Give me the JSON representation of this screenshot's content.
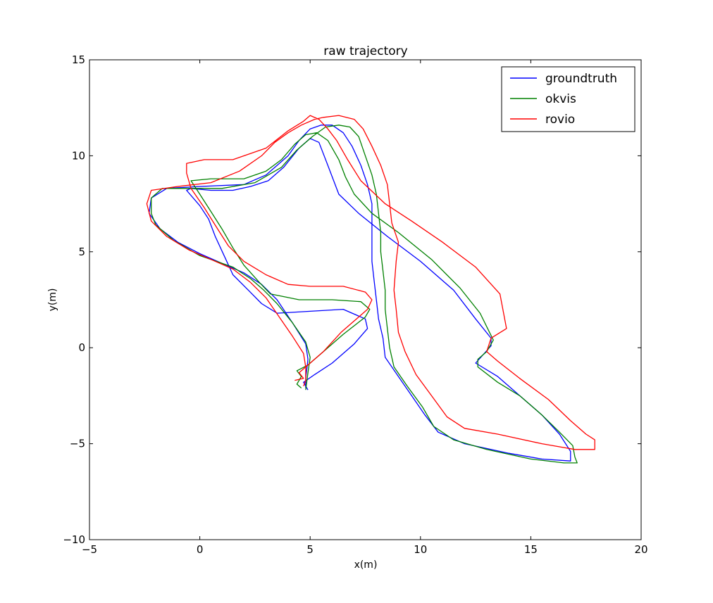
{
  "chart_data": {
    "type": "line",
    "title": "raw trajectory",
    "xlabel": "x(m)",
    "ylabel": "y(m)",
    "xlim": [
      -5,
      20
    ],
    "ylim": [
      -10,
      15
    ],
    "xticks": [
      -5,
      0,
      5,
      10,
      15,
      20
    ],
    "yticks": [
      -10,
      -5,
      0,
      5,
      10,
      15
    ],
    "xtick_labels": [
      "−5",
      "0",
      "5",
      "10",
      "15",
      "20"
    ],
    "ytick_labels": [
      "−10",
      "−5",
      "0",
      "5",
      "10",
      "15"
    ],
    "grid": false,
    "legend_position": "top-right",
    "series": [
      {
        "name": "groundtruth",
        "color": "#0000ff",
        "points": [
          [
            4.9,
            -2.2
          ],
          [
            4.7,
            -1.8
          ],
          [
            5.2,
            -1.4
          ],
          [
            6.0,
            -0.8
          ],
          [
            7.0,
            0.2
          ],
          [
            7.6,
            1.0
          ],
          [
            7.5,
            1.5
          ],
          [
            6.5,
            2.0
          ],
          [
            5.0,
            1.9
          ],
          [
            3.5,
            1.8
          ],
          [
            2.8,
            2.3
          ],
          [
            2.2,
            3.0
          ],
          [
            1.5,
            3.8
          ],
          [
            1.1,
            4.8
          ],
          [
            0.7,
            5.8
          ],
          [
            0.4,
            6.7
          ],
          [
            0.0,
            7.4
          ],
          [
            -0.6,
            8.2
          ],
          [
            -0.4,
            8.3
          ],
          [
            0.5,
            8.2
          ],
          [
            1.5,
            8.2
          ],
          [
            2.3,
            8.4
          ],
          [
            3.1,
            8.7
          ],
          [
            3.8,
            9.4
          ],
          [
            4.5,
            10.4
          ],
          [
            5.0,
            10.9
          ],
          [
            5.4,
            10.7
          ],
          [
            5.8,
            9.5
          ],
          [
            6.3,
            8.0
          ],
          [
            7.2,
            7.0
          ],
          [
            8.5,
            5.8
          ],
          [
            10.0,
            4.5
          ],
          [
            11.5,
            3.0
          ],
          [
            12.5,
            1.5
          ],
          [
            13.2,
            0.5
          ],
          [
            13.2,
            0.1
          ],
          [
            12.5,
            -0.8
          ],
          [
            13.5,
            -1.5
          ],
          [
            14.5,
            -2.5
          ],
          [
            15.5,
            -3.5
          ],
          [
            16.3,
            -4.5
          ],
          [
            16.8,
            -5.4
          ],
          [
            16.8,
            -5.9
          ],
          [
            15.5,
            -5.8
          ],
          [
            14.0,
            -5.5
          ],
          [
            12.0,
            -5.0
          ],
          [
            10.8,
            -4.4
          ],
          [
            10.2,
            -3.5
          ],
          [
            9.6,
            -2.5
          ],
          [
            9.0,
            -1.5
          ],
          [
            8.4,
            -0.5
          ],
          [
            8.3,
            0.5
          ],
          [
            8.1,
            1.5
          ],
          [
            8.0,
            2.5
          ],
          [
            7.9,
            3.5
          ],
          [
            7.8,
            4.5
          ],
          [
            7.8,
            5.5
          ],
          [
            7.8,
            6.5
          ],
          [
            7.8,
            7.5
          ],
          [
            7.6,
            8.5
          ],
          [
            7.3,
            9.5
          ],
          [
            6.9,
            10.5
          ],
          [
            6.5,
            11.2
          ],
          [
            6.0,
            11.6
          ],
          [
            5.5,
            11.6
          ],
          [
            5.0,
            11.4
          ],
          [
            4.5,
            10.8
          ],
          [
            4.0,
            10.0
          ],
          [
            3.0,
            9.0
          ],
          [
            2.0,
            8.5
          ],
          [
            0.0,
            8.4
          ],
          [
            -1.5,
            8.3
          ],
          [
            -2.2,
            7.8
          ],
          [
            -2.3,
            7.0
          ],
          [
            -1.8,
            6.2
          ],
          [
            -1.0,
            5.5
          ],
          [
            0.0,
            4.9
          ],
          [
            1.0,
            4.4
          ],
          [
            2.0,
            3.9
          ],
          [
            2.8,
            3.3
          ],
          [
            3.5,
            2.5
          ],
          [
            4.2,
            1.3
          ],
          [
            4.8,
            0.2
          ],
          [
            4.9,
            -0.6
          ],
          [
            4.8,
            -1.6
          ],
          [
            4.8,
            -2.1
          ]
        ]
      },
      {
        "name": "okvis",
        "color": "#008000",
        "points": [
          [
            4.6,
            -2.1
          ],
          [
            4.4,
            -1.9
          ],
          [
            4.6,
            -1.5
          ],
          [
            4.4,
            -1.2
          ],
          [
            4.9,
            -0.9
          ],
          [
            5.6,
            -0.2
          ],
          [
            6.5,
            0.7
          ],
          [
            7.5,
            1.6
          ],
          [
            7.7,
            2.0
          ],
          [
            7.3,
            2.4
          ],
          [
            6.0,
            2.5
          ],
          [
            4.5,
            2.5
          ],
          [
            3.2,
            2.8
          ],
          [
            2.7,
            3.4
          ],
          [
            2.0,
            4.3
          ],
          [
            1.5,
            5.2
          ],
          [
            1.0,
            6.2
          ],
          [
            0.5,
            7.1
          ],
          [
            0.0,
            8.0
          ],
          [
            -0.4,
            8.7
          ],
          [
            0.5,
            8.8
          ],
          [
            2.0,
            8.8
          ],
          [
            3.0,
            9.2
          ],
          [
            3.7,
            9.8
          ],
          [
            4.3,
            10.6
          ],
          [
            4.8,
            11.1
          ],
          [
            5.3,
            11.2
          ],
          [
            5.8,
            10.8
          ],
          [
            6.3,
            9.8
          ],
          [
            6.6,
            8.9
          ],
          [
            7.0,
            8.0
          ],
          [
            7.8,
            7.0
          ],
          [
            9.0,
            6.0
          ],
          [
            10.5,
            4.6
          ],
          [
            11.8,
            3.1
          ],
          [
            12.7,
            1.8
          ],
          [
            13.3,
            0.4
          ],
          [
            13.0,
            -0.2
          ],
          [
            12.6,
            -0.6
          ],
          [
            12.6,
            -1.0
          ],
          [
            13.5,
            -1.8
          ],
          [
            14.5,
            -2.5
          ],
          [
            15.5,
            -3.5
          ],
          [
            16.3,
            -4.4
          ],
          [
            16.9,
            -5.1
          ],
          [
            17.0,
            -5.7
          ],
          [
            17.1,
            -6.0
          ],
          [
            16.5,
            -6.0
          ],
          [
            15.0,
            -5.8
          ],
          [
            13.0,
            -5.3
          ],
          [
            11.5,
            -4.8
          ],
          [
            10.6,
            -4.1
          ],
          [
            10.1,
            -3.1
          ],
          [
            9.4,
            -2.0
          ],
          [
            8.8,
            -1.0
          ],
          [
            8.6,
            0.0
          ],
          [
            8.5,
            1.0
          ],
          [
            8.4,
            2.0
          ],
          [
            8.4,
            3.0
          ],
          [
            8.3,
            4.0
          ],
          [
            8.2,
            5.0
          ],
          [
            8.2,
            6.0
          ],
          [
            8.1,
            7.0
          ],
          [
            8.0,
            8.0
          ],
          [
            7.8,
            9.0
          ],
          [
            7.5,
            10.0
          ],
          [
            7.2,
            11.0
          ],
          [
            6.8,
            11.5
          ],
          [
            6.3,
            11.6
          ],
          [
            5.7,
            11.5
          ],
          [
            5.1,
            11.0
          ],
          [
            4.4,
            10.3
          ],
          [
            3.7,
            9.4
          ],
          [
            2.5,
            8.6
          ],
          [
            1.0,
            8.3
          ],
          [
            -0.5,
            8.3
          ],
          [
            -1.7,
            8.3
          ],
          [
            -2.2,
            7.8
          ],
          [
            -2.2,
            7.0
          ],
          [
            -2.0,
            6.4
          ],
          [
            -1.2,
            5.6
          ],
          [
            0.0,
            4.8
          ],
          [
            1.5,
            4.2
          ],
          [
            2.3,
            3.6
          ],
          [
            2.9,
            3.0
          ],
          [
            3.5,
            2.3
          ],
          [
            4.2,
            1.3
          ],
          [
            4.8,
            0.3
          ],
          [
            5.0,
            -0.5
          ],
          [
            4.9,
            -1.3
          ],
          [
            4.8,
            -2.2
          ]
        ]
      },
      {
        "name": "rovio",
        "color": "#ff0000",
        "points": [
          [
            4.3,
            -1.7
          ],
          [
            4.7,
            -1.6
          ],
          [
            4.5,
            -1.3
          ],
          [
            4.8,
            -1.0
          ],
          [
            5.6,
            -0.2
          ],
          [
            6.4,
            0.8
          ],
          [
            7.6,
            2.0
          ],
          [
            7.8,
            2.5
          ],
          [
            7.5,
            2.9
          ],
          [
            6.5,
            3.2
          ],
          [
            5.0,
            3.2
          ],
          [
            4.0,
            3.3
          ],
          [
            3.0,
            3.8
          ],
          [
            2.0,
            4.5
          ],
          [
            1.3,
            5.3
          ],
          [
            0.8,
            6.2
          ],
          [
            0.2,
            7.3
          ],
          [
            -0.4,
            8.3
          ],
          [
            -0.6,
            9.1
          ],
          [
            -0.6,
            9.6
          ],
          [
            0.2,
            9.8
          ],
          [
            1.5,
            9.8
          ],
          [
            3.0,
            10.4
          ],
          [
            4.0,
            11.3
          ],
          [
            4.7,
            11.8
          ],
          [
            5.0,
            12.1
          ],
          [
            5.4,
            11.9
          ],
          [
            5.8,
            11.4
          ],
          [
            6.2,
            10.8
          ],
          [
            6.7,
            9.8
          ],
          [
            7.3,
            8.7
          ],
          [
            8.4,
            7.5
          ],
          [
            9.6,
            6.6
          ],
          [
            11.0,
            5.5
          ],
          [
            12.5,
            4.2
          ],
          [
            13.6,
            2.8
          ],
          [
            13.9,
            1.0
          ],
          [
            13.2,
            0.5
          ],
          [
            13.0,
            -0.2
          ],
          [
            13.5,
            -0.7
          ],
          [
            14.5,
            -1.6
          ],
          [
            15.8,
            -2.7
          ],
          [
            16.8,
            -3.8
          ],
          [
            17.5,
            -4.5
          ],
          [
            17.9,
            -4.8
          ],
          [
            17.9,
            -5.3
          ],
          [
            17.0,
            -5.3
          ],
          [
            15.5,
            -5.0
          ],
          [
            13.5,
            -4.5
          ],
          [
            12.0,
            -4.2
          ],
          [
            11.2,
            -3.6
          ],
          [
            10.5,
            -2.5
          ],
          [
            9.8,
            -1.4
          ],
          [
            9.3,
            -0.2
          ],
          [
            9.0,
            0.8
          ],
          [
            8.9,
            2.0
          ],
          [
            8.8,
            3.0
          ],
          [
            8.9,
            4.5
          ],
          [
            9.0,
            5.5
          ],
          [
            8.7,
            6.5
          ],
          [
            8.6,
            7.5
          ],
          [
            8.5,
            8.5
          ],
          [
            8.2,
            9.5
          ],
          [
            7.8,
            10.5
          ],
          [
            7.4,
            11.4
          ],
          [
            7.0,
            11.9
          ],
          [
            6.3,
            12.1
          ],
          [
            5.6,
            12.0
          ],
          [
            5.2,
            11.9
          ],
          [
            4.6,
            11.6
          ],
          [
            4.0,
            11.2
          ],
          [
            3.4,
            10.7
          ],
          [
            2.8,
            10.0
          ],
          [
            1.8,
            9.2
          ],
          [
            0.5,
            8.6
          ],
          [
            -1.0,
            8.4
          ],
          [
            -2.2,
            8.2
          ],
          [
            -2.4,
            7.5
          ],
          [
            -2.2,
            6.6
          ],
          [
            -1.5,
            5.8
          ],
          [
            -0.5,
            5.1
          ],
          [
            0.5,
            4.6
          ],
          [
            1.5,
            4.1
          ],
          [
            2.3,
            3.4
          ],
          [
            3.0,
            2.6
          ],
          [
            3.6,
            1.6
          ],
          [
            4.2,
            0.6
          ],
          [
            4.7,
            -0.3
          ],
          [
            4.8,
            -1.0
          ],
          [
            4.8,
            -1.7
          ],
          [
            4.7,
            -2.0
          ]
        ]
      }
    ]
  }
}
